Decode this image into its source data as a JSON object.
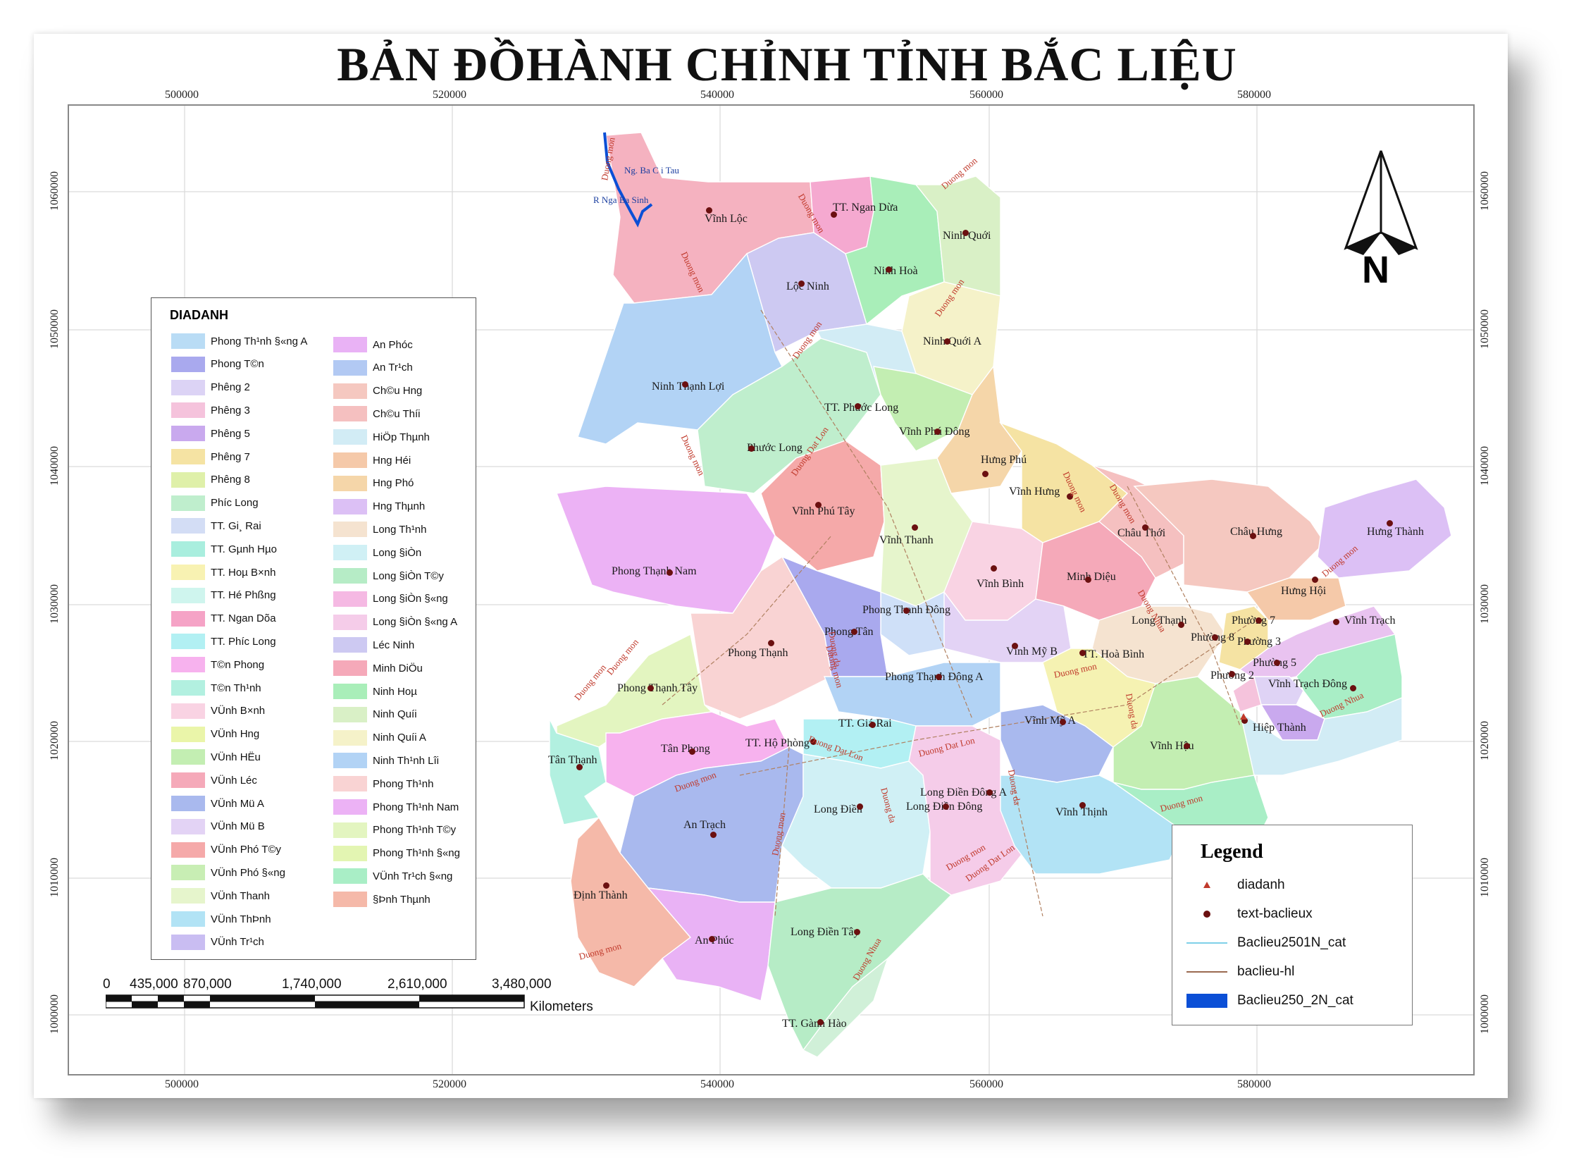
{
  "title": "BẢN ĐỒHÀNH CHỈNH TỈNH BẮC LIỆU",
  "colors": {
    "frame": "#888888",
    "road_label": "#c0392b",
    "river": "#1a3ea0",
    "point": "#6b1010",
    "triangle": "#c0392b"
  },
  "grid": {
    "x_ticks": [
      "500000",
      "520000",
      "540000",
      "560000",
      "580000"
    ],
    "y_ticks": [
      "1060000",
      "1050000",
      "1040000",
      "1030000",
      "1020000",
      "1010000",
      "1000000"
    ]
  },
  "places": [
    "Vĩnh Lộc",
    "TT. Ngan Dừa",
    "Ninh Quới",
    "Ninh Hoà",
    "Lộc Ninh",
    "Ninh Quới A",
    "Ninh Thạnh Lợi",
    "TT. Phước Long",
    "Vĩnh Phú Đông",
    "Phước Long",
    "Hưng Phú",
    "Vĩnh Hưng",
    "Vĩnh Phú Tây",
    "Vĩnh Thanh",
    "Châu Thới",
    "Châu Hưng",
    "Hưng Thành",
    "Phong Thạnh Nam",
    "Vĩnh Bình",
    "Minh Diệu",
    "Hưng Hội",
    "Phong Thạnh Đông",
    "Long Thạnh",
    "Phường 7",
    "Vĩnh Trạch",
    "Phong Tân",
    "Phường 8",
    "Phường 3",
    "Phong Thạnh",
    "Vĩnh Mỹ B",
    "TT. Hoà Bình",
    "Phường 5",
    "Phường 2",
    "Vĩnh Trạch Đông",
    "Phong Thạnh Tây",
    "Phong Thạnh Đông A",
    "TT. Giá Rai",
    "Vĩnh Mỹ A",
    "Hiệp Thành",
    "Tân Phong",
    "TT. Hộ Phòng",
    "Tân Thạnh",
    "Vĩnh Hậu",
    "Long Điền Đông A",
    "Long Điền",
    "Long Điền Đông",
    "Vĩnh Thịnh",
    "An Trạch",
    "Định Thành",
    "An Phúc",
    "Long Điền Tây",
    "TT. Gành Hào"
  ],
  "roads": [
    "Duong mon",
    "Duong Dat Lon",
    "Duong Nhua",
    "Duong da"
  ],
  "rivers": [
    "Ng. Ba C i Tau",
    "R Nga Ba Sinh"
  ],
  "legend_left": {
    "title": "DIADANH",
    "col1": [
      "Phong Th¹nh §«ng A",
      "Phong T©n",
      "Ph­êng 2",
      "Ph­êng 3",
      "Ph­êng 5",
      "Ph­êng 7",
      "Ph­êng 8",
      "Ph­íc Long",
      "TT. Gi¸ Rai",
      "TT. Gµnh Hµo",
      "TT. Hoµ B×nh",
      "TT. Hé Phßng",
      "TT. Ngan Dõa",
      "TT. Ph­íc Long",
      "T©n Phong",
      "T©n Th¹nh",
      "VÜnh B×nh",
      "VÜnh H­ng",
      "VÜnh HËu",
      "VÜnh Léc",
      "VÜnh Mü A",
      "VÜnh Mü B",
      "VÜnh Phó T©y",
      "VÜnh Phó §«ng",
      "VÜnh Thanh",
      "VÜnh ThÞnh",
      "VÜnh Tr¹ch"
    ],
    "col2": [
      "An Phóc",
      "An Tr¹ch",
      "Ch©u H­ng",
      "Ch©u Thíi",
      "HiÖp Thµnh",
      "H­ng Héi",
      "H­ng Phó",
      "H­ng Thµnh",
      "Long Th¹nh",
      "Long §iÒn",
      "Long §iÒn T©y",
      "Long §iÒn §«ng",
      "Long §iÒn §«ng A",
      "Léc Ninh",
      "Minh DiÖu",
      "Ninh Hoµ",
      "Ninh Quíi",
      "Ninh Quíi A",
      "Ninh Th¹nh Lîi",
      "Phong Th¹nh",
      "Phong Th¹nh Nam",
      "Phong Th¹nh T©y",
      "Phong Th¹nh §«ng",
      "VÜnh Tr¹ch §«ng",
      "§Þnh Thµnh"
    ],
    "col1_colors": [
      "#b9dcf5",
      "#a9a9ee",
      "#dcd3f5",
      "#f5c3dc",
      "#c9a9ee",
      "#f5e3a3",
      "#dff0a9",
      "#bfeecd",
      "#d3ddf5",
      "#a9eede",
      "#f8f2b2",
      "#cff5ee",
      "#f5a3c6",
      "#b2f0f3",
      "#f7b2ee",
      "#b2f0e0",
      "#f9d3e3",
      "#eaf5a9",
      "#c3eeb2",
      "#f5a9b9",
      "#a9b9ee",
      "#e3d3f5",
      "#f5a9a9",
      "#c8eeb4",
      "#e6f5cc",
      "#b2e3f5",
      "#c9bdf2"
    ],
    "col2_colors": [
      "#e9b2f5",
      "#b2c9f3",
      "#f5c8c0",
      "#f5c0c0",
      "#d2ecf5",
      "#f5c9a9",
      "#f5d6a9",
      "#dcc0f5",
      "#f5e3d0",
      "#d0f0f5",
      "#b6ecc6",
      "#f5b9e3",
      "#f5cce9",
      "#cdc9f2",
      "#f5a9b9",
      "#a9eeb9",
      "#d9f0c6",
      "#f5f2c9",
      "#b2d3f5",
      "#f9d3d3",
      "#ecb2f5",
      "#e3f5c0",
      "#e3f5b2",
      "#a9eec6",
      "#f5b9a9"
    ]
  },
  "legend_right": {
    "title": "Legend",
    "items": [
      "diadanh",
      "text-baclieux",
      "Baclieu2501N_cat",
      "baclieu-hl",
      "Baclieu250_2N_cat"
    ]
  },
  "scale": {
    "labels": [
      "0",
      "435,000",
      "870,000",
      "1,740,000",
      "2,610,000",
      "3,480,000"
    ],
    "unit": "Kilometers"
  },
  "north": {
    "label": "N"
  }
}
